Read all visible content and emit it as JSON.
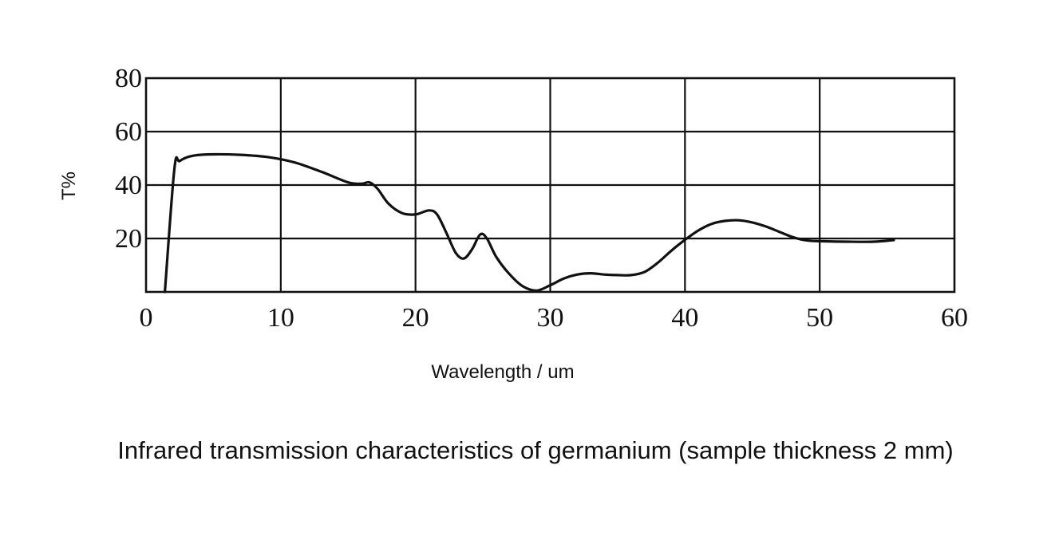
{
  "chart_data": {
    "type": "line",
    "title": "",
    "caption": "Infrared transmission characteristics of germanium (sample thickness 2 mm)",
    "xlabel": "Wavelength / um",
    "ylabel": "T%",
    "xlim": [
      0,
      60
    ],
    "ylim": [
      0,
      80
    ],
    "xticks": [
      0,
      10,
      20,
      30,
      40,
      50,
      60
    ],
    "yticks": [
      20,
      40,
      60,
      80
    ],
    "grid": true,
    "legend": "none",
    "line_color": "#111111",
    "series": [
      {
        "x": [
          1.4,
          2.1,
          2.5,
          3.5,
          5,
          7,
          9,
          11,
          13,
          15,
          16,
          16.6,
          17.2,
          18,
          19,
          20,
          21,
          21.6,
          22.3,
          23,
          23.6,
          24.2,
          24.8,
          25.3,
          26,
          27,
          28,
          29,
          30,
          31,
          32,
          33,
          34,
          35,
          36,
          37,
          38,
          39,
          40,
          41,
          42,
          43,
          44,
          45,
          46,
          47,
          48,
          49,
          50,
          52,
          54,
          55.5
        ],
        "y": [
          0,
          46,
          49,
          51,
          51.5,
          51.3,
          50.5,
          48.5,
          45,
          41,
          40.5,
          41,
          38.5,
          33,
          29.5,
          29,
          30.5,
          29,
          22,
          14.5,
          12.5,
          16,
          21.5,
          20,
          13,
          6.5,
          2,
          0.5,
          2.5,
          5,
          6.5,
          7,
          6.5,
          6.3,
          6.3,
          7.5,
          11,
          15.5,
          19.5,
          23,
          25.5,
          26.6,
          26.8,
          26,
          24.5,
          22.5,
          20.5,
          19.3,
          19,
          18.8,
          18.8,
          19.4
        ]
      }
    ]
  }
}
